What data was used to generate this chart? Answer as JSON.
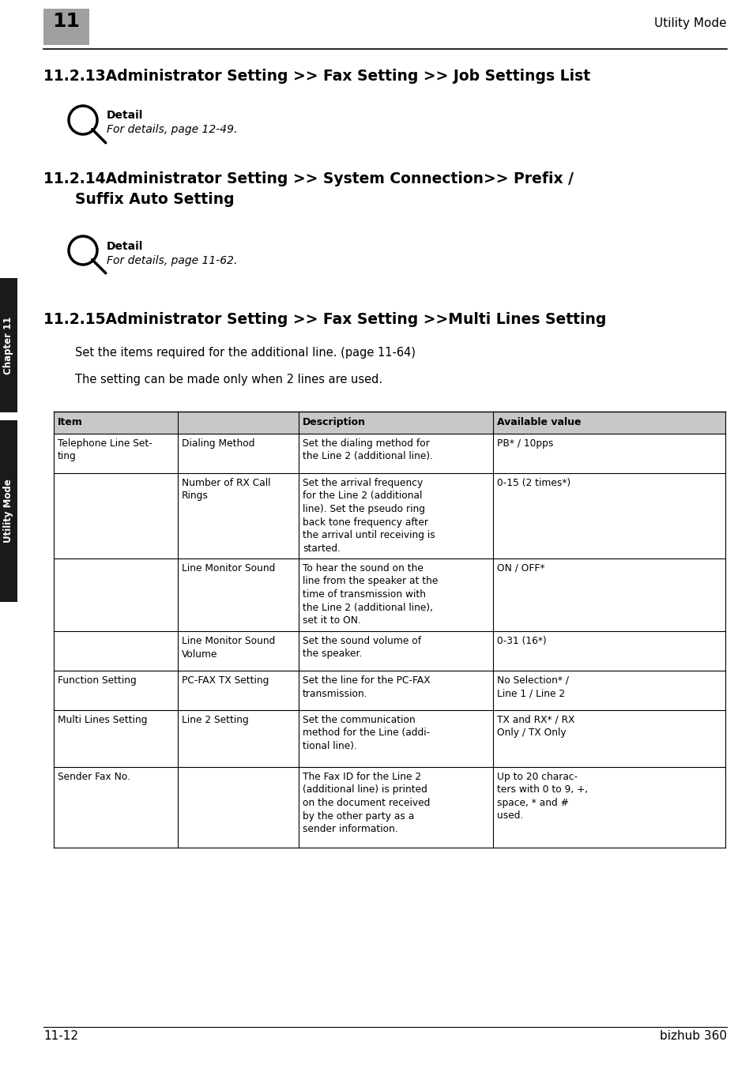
{
  "page_number": "11-12",
  "brand": "bizhub 360",
  "chapter_label": "Chapter 11",
  "side_label": "Utility Mode",
  "header_chapter": "11",
  "header_right": "Utility Mode",
  "background_color": "#ffffff",
  "section_1_title": "11.2.13Administrator Setting >> Fax Setting >> Job Settings List",
  "section_2_line1": "11.2.14Administrator Setting >> System Connection>> Prefix /",
  "section_2_line2": "Suffix Auto Setting",
  "section_3_title": "11.2.15Administrator Setting >> Fax Setting >>Multi Lines Setting",
  "detail_label": "Detail",
  "detail_text_1": "For details, page 12-49.",
  "detail_text_2": "For details, page 11-62.",
  "body_text_1": "Set the items required for the additional line. (page 11-64)",
  "body_text_2": "The setting can be made only when 2 lines are used.",
  "table_header_bg": "#c8c8c8",
  "header_box_color": "#a0a0a0",
  "side_bar_color": "#1a1a1a",
  "table_rows": [
    {
      "col1": "Telephone Line Set-\nting",
      "col2": "Dialing Method",
      "col3": "Set the dialing method for\nthe Line 2 (additional line).",
      "col4": "PB* / 10pps"
    },
    {
      "col1": "",
      "col2": "Number of RX Call\nRings",
      "col3": "Set the arrival frequency\nfor the Line 2 (additional\nline). Set the pseudo ring\nback tone frequency after\nthe arrival until receiving is\nstarted.",
      "col4": "0-15 (2 times*)"
    },
    {
      "col1": "",
      "col2": "Line Monitor Sound",
      "col3": "To hear the sound on the\nline from the speaker at the\ntime of transmission with\nthe Line 2 (additional line),\nset it to ON.",
      "col4": "ON / OFF*"
    },
    {
      "col1": "",
      "col2": "Line Monitor Sound\nVolume",
      "col3": "Set the sound volume of\nthe speaker.",
      "col4": "0-31 (16*)"
    },
    {
      "col1": "Function Setting",
      "col2": "PC-FAX TX Setting",
      "col3": "Set the line for the PC-FAX\ntransmission.",
      "col4": "No Selection* /\nLine 1 / Line 2"
    },
    {
      "col1": "Multi Lines Setting",
      "col2": "Line 2 Setting",
      "col3": "Set the communication\nmethod for the Line (addi-\ntional line).",
      "col4": "TX and RX* / RX\nOnly / TX Only"
    },
    {
      "col1": "Sender Fax No.",
      "col2": "",
      "col3": "The Fax ID for the Line 2\n(additional line) is printed\non the document received\nby the other party as a\nsender information.",
      "col4": "Up to 20 charac-\nters with 0 to 9, +,\nspace, * and #\nused."
    }
  ]
}
